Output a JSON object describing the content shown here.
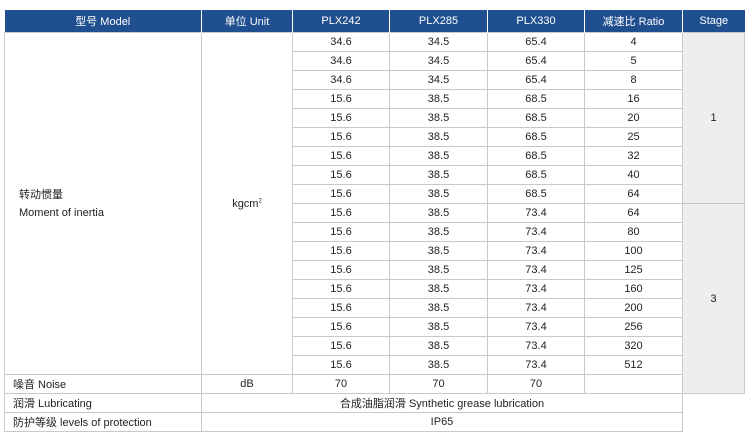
{
  "headers": [
    "型号 Model",
    "单位 Unit",
    "PLX242",
    "PLX285",
    "PLX330",
    "减速比 Ratio",
    "Stage"
  ],
  "inertia": {
    "label_cn": "转动惯量",
    "label_en": "Moment of inertia",
    "unit_base": "kgcm",
    "unit_sup": "2",
    "stage1": "1",
    "stage3": "3",
    "rows": [
      [
        "34.6",
        "34.5",
        "65.4",
        "4"
      ],
      [
        "34.6",
        "34.5",
        "65.4",
        "5"
      ],
      [
        "34.6",
        "34.5",
        "65.4",
        "8"
      ],
      [
        "15.6",
        "38.5",
        "68.5",
        "16"
      ],
      [
        "15.6",
        "38.5",
        "68.5",
        "20"
      ],
      [
        "15.6",
        "38.5",
        "68.5",
        "25"
      ],
      [
        "15.6",
        "38.5",
        "68.5",
        "32"
      ],
      [
        "15.6",
        "38.5",
        "68.5",
        "40"
      ],
      [
        "15.6",
        "38.5",
        "68.5",
        "64"
      ],
      [
        "15.6",
        "38.5",
        "73.4",
        "64"
      ],
      [
        "15.6",
        "38.5",
        "73.4",
        "80"
      ],
      [
        "15.6",
        "38.5",
        "73.4",
        "100"
      ],
      [
        "15.6",
        "38.5",
        "73.4",
        "125"
      ],
      [
        "15.6",
        "38.5",
        "73.4",
        "160"
      ],
      [
        "15.6",
        "38.5",
        "73.4",
        "200"
      ],
      [
        "15.6",
        "38.5",
        "73.4",
        "256"
      ],
      [
        "15.6",
        "38.5",
        "73.4",
        "320"
      ],
      [
        "15.6",
        "38.5",
        "73.4",
        "512"
      ]
    ]
  },
  "noise": {
    "label": "噪音 Noise",
    "unit": "dB",
    "values": [
      "70",
      "70",
      "70"
    ]
  },
  "lubricating": {
    "label": "润滑 Lubricating",
    "value": "合成油脂润滑 Synthetic grease lubrication"
  },
  "protection": {
    "label": "防护等级 levels of protection",
    "value": "IP65"
  }
}
